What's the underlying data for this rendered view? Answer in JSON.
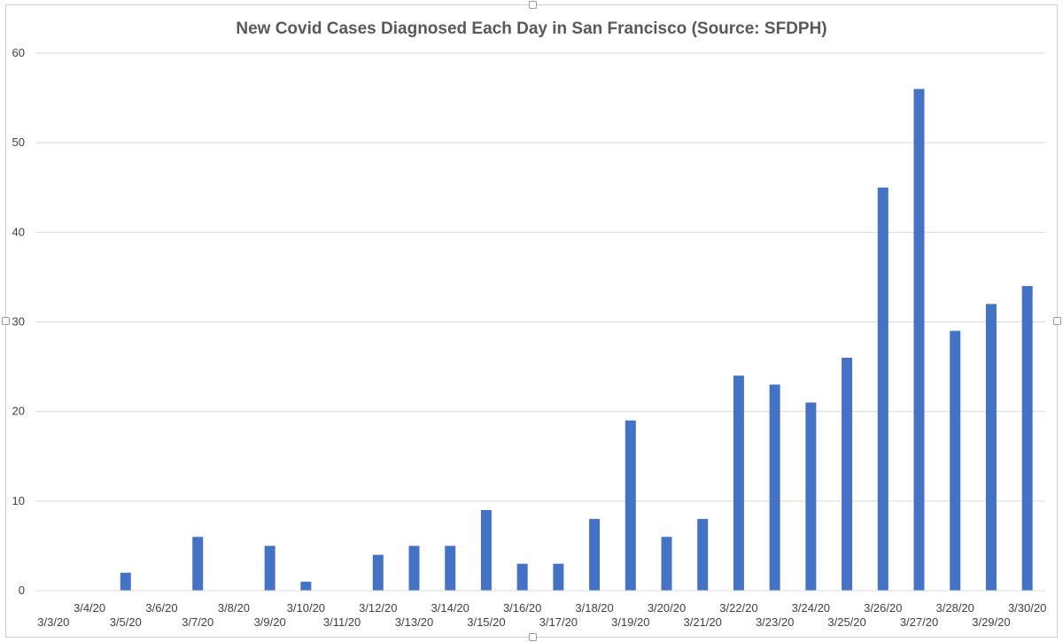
{
  "chart_data": {
    "type": "bar",
    "title": "New Covid Cases Diagnosed Each Day in San Francisco (Source: SFDPH)",
    "xlabel": "",
    "ylabel": "",
    "ylim": [
      0,
      60
    ],
    "yticks": [
      0,
      10,
      20,
      30,
      40,
      50,
      60
    ],
    "grid": true,
    "legend": "none",
    "bar_color": "#4472C4",
    "categories": [
      "3/3/20",
      "3/4/20",
      "3/5/20",
      "3/6/20",
      "3/7/20",
      "3/8/20",
      "3/9/20",
      "3/10/20",
      "3/11/20",
      "3/12/20",
      "3/13/20",
      "3/14/20",
      "3/15/20",
      "3/16/20",
      "3/17/20",
      "3/18/20",
      "3/19/20",
      "3/20/20",
      "3/21/20",
      "3/22/20",
      "3/23/20",
      "3/24/20",
      "3/25/20",
      "3/26/20",
      "3/27/20",
      "3/28/20",
      "3/29/20",
      "3/30/20"
    ],
    "values": [
      0,
      0,
      2,
      0,
      6,
      0,
      5,
      1,
      0,
      4,
      5,
      5,
      9,
      3,
      3,
      8,
      19,
      6,
      8,
      24,
      23,
      21,
      26,
      45,
      56,
      29,
      32,
      34
    ]
  }
}
